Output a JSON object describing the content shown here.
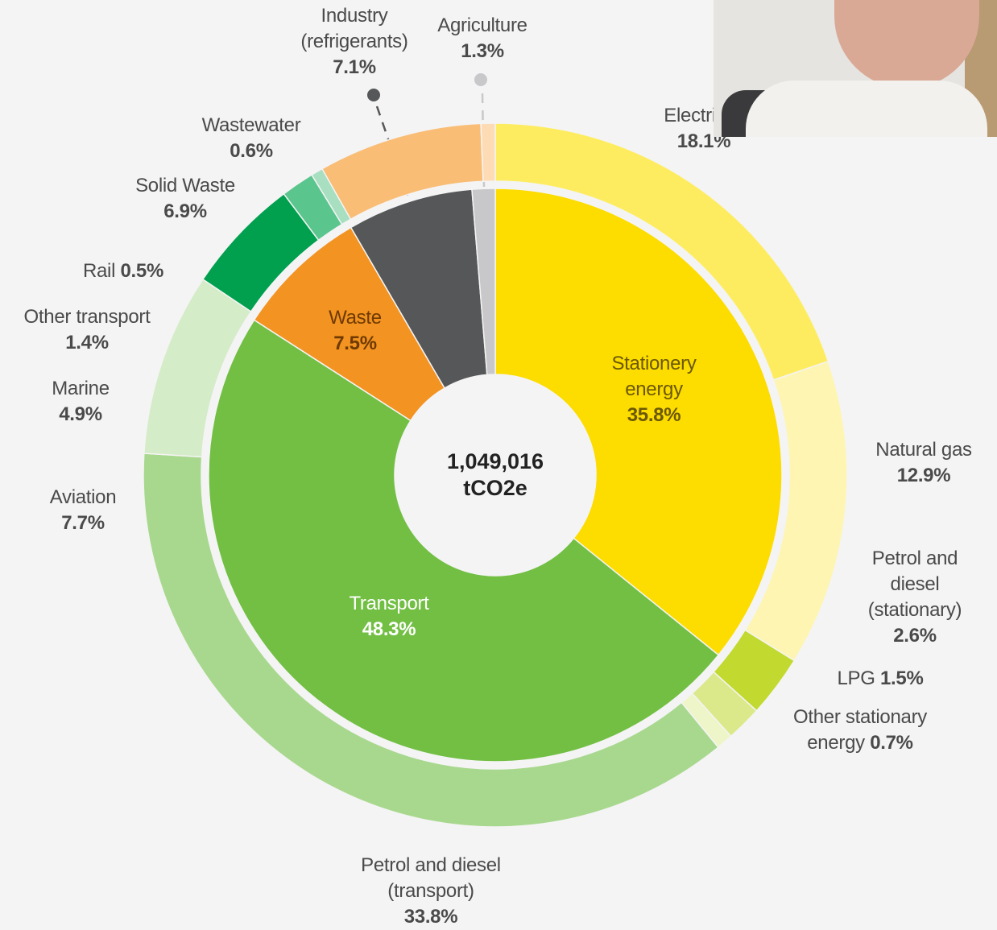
{
  "chart_data": {
    "type": "sunburst",
    "center_value": "1,049,016",
    "center_unit": "tCO2e",
    "inner": {
      "categories": [
        "Stationery energy",
        "Transport",
        "Waste",
        "Industry (refrigerants)",
        "Agriculture"
      ],
      "values": [
        35.8,
        48.3,
        7.5,
        7.1,
        1.3
      ],
      "value_labels": [
        "35.8%",
        "48.3%",
        "7.5%",
        "7.1%",
        "1.3%"
      ],
      "colors": [
        "#fddc00",
        "#72bf44",
        "#f39322",
        "#555759",
        "#c8c8ca"
      ]
    },
    "outer": {
      "categories": [
        "Electricity",
        "Natural gas",
        "Petrol and diesel (stationary)",
        "LPG",
        "Other stationary energy",
        "Petrol and diesel (transport)",
        "Aviation",
        "Marine",
        "Other transport",
        "Rail",
        "Solid Waste",
        "Wastewater"
      ],
      "values": [
        18.1,
        12.9,
        2.6,
        1.5,
        0.7,
        33.8,
        7.7,
        4.9,
        1.4,
        0.5,
        6.9,
        0.6
      ],
      "value_labels": [
        "18.1%",
        "12.9%",
        "2.6%",
        "1.5%",
        "0.7%",
        "33.8%",
        "7.7%",
        "4.9%",
        "1.4%",
        "0.5%",
        "6.9%",
        "0.6%"
      ],
      "colors": [
        "#feec60",
        "#fef5b3",
        "#c2d92f",
        "#dbe98a",
        "#eef5c8",
        "#a8d88e",
        "#d5ecc8",
        "#00a04f",
        "#5bc58e",
        "#a7dfc0",
        "#f9bd75",
        "#fddcb5"
      ]
    }
  }
}
